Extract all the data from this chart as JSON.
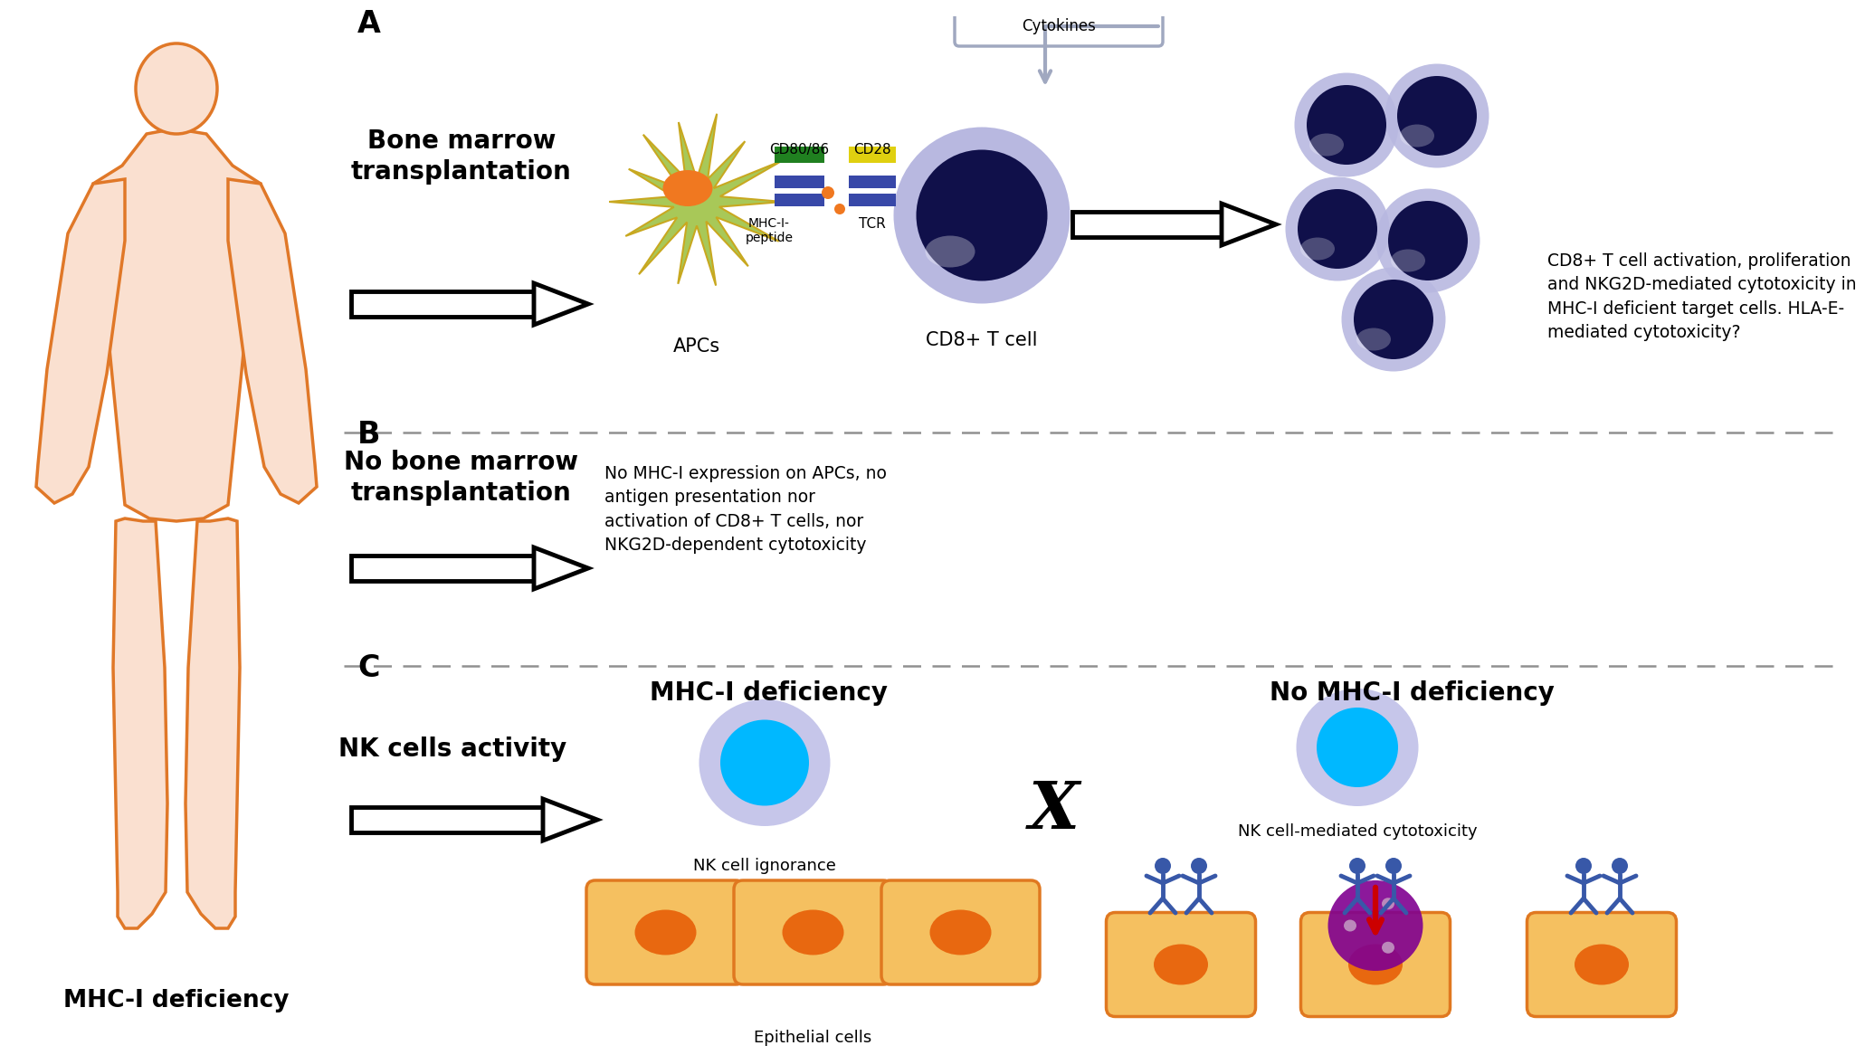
{
  "bg_color": "#ffffff",
  "human_outline_color": "#E07828",
  "human_fill_color": "#FAE0D0",
  "label_mhc_deficiency": "MHC-I deficiency",
  "bone_marrow_text": "Bone marrow\ntransplantation",
  "no_bone_marrow_text": "No bone marrow\ntransplantation",
  "nk_cells_text": "NK cells activity",
  "mhc_def_col_text": "MHC-I deficiency",
  "no_mhc_def_col_text": "No MHC-I deficiency",
  "nk_ignorance_text": "NK cell ignorance",
  "nk_cytotox_text": "NK cell-mediated cytotoxicity",
  "epithelial_text": "Epithelial cells",
  "apcs_label": "APCs",
  "cd8_tcell_label": "CD8+ T cell",
  "cytokines_label": "Cytokines",
  "cd80_86_label": "CD80/86",
  "cd28_label": "CD28",
  "mhc_peptide_label": "MHC-I-\npeptide",
  "tcr_label": "TCR",
  "section_A_result": "CD8+ T cell activation, proliferation\nand NKG2D-mediated cytotoxicity in\nMHC-I deficient target cells. HLA-E-\nmediated cytotoxicity?",
  "section_B_result": "No MHC-I expression on APCs, no\nantigen presentation nor\nactivation of CD8+ T cells, nor\nNKG2D-dependent cytotoxicity",
  "apc_body_color": "#A8C858",
  "apc_outline_color": "#C8A820",
  "apc_nucleus_color": "#F07820",
  "cd8_cell_outer_color": "#B8B8E0",
  "cd8_cell_inner_color": "#10104A",
  "cd80_86_color": "#208020",
  "cd28_color": "#E0D010",
  "mhc_peptide_color": "#3848A8",
  "tcr_color": "#3848A8",
  "nk_cell_outer_color": "#C0C0E8",
  "nk_cell_inner_color": "#00B8FF",
  "epithelial_cell_fill": "#F5C060",
  "epithelial_nucleus_color": "#E86810",
  "epithelial_border_color": "#E07820",
  "purple_cell_color": "#800090",
  "red_arrow_color": "#CC0000",
  "separator_color": "#909090",
  "blue_figure_color": "#3858A8",
  "cytokine_box_color": "#A0A8C0",
  "cytokine_arrow_color": "#8090B0"
}
